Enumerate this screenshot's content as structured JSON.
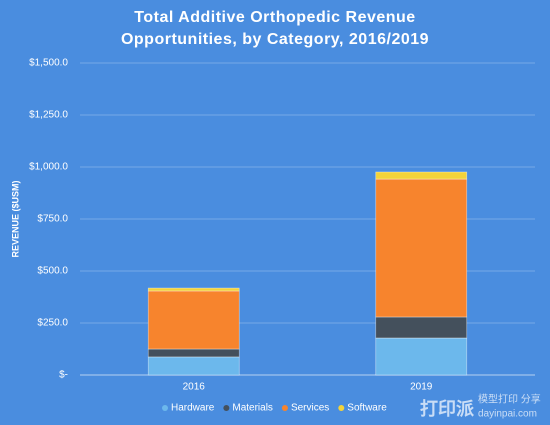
{
  "chart_data": {
    "type": "stacked-bar",
    "title": [
      "Total Additive Orthopedic Revenue",
      "Opportunities, by Category, 2016/2019"
    ],
    "y_label": "REVENUE ($USM)",
    "categories": [
      "2016",
      "2019"
    ],
    "series": [
      {
        "name": "Hardware",
        "color": "#6cb8ec",
        "values": [
          87,
          178
        ]
      },
      {
        "name": "Materials",
        "color": "#44505c",
        "values": [
          38,
          101
        ]
      },
      {
        "name": "Services",
        "color": "#f7842d",
        "values": [
          279,
          663
        ]
      },
      {
        "name": "Software",
        "color": "#f3d33a",
        "values": [
          14,
          34
        ]
      }
    ],
    "ylim": [
      0,
      1500
    ],
    "yticks": [
      {
        "value": 0,
        "label": "$-"
      },
      {
        "value": 250,
        "label": "$250.0"
      },
      {
        "value": 500,
        "label": "$500.0"
      },
      {
        "value": 750,
        "label": "$750.0"
      },
      {
        "value": 1000,
        "label": "$1,000.0"
      },
      {
        "value": 1250,
        "label": "$1,250.0"
      },
      {
        "value": 1500,
        "label": "$1,500.0"
      }
    ],
    "grid": true,
    "legend": "bottom",
    "watermark": [
      "打印派",
      "模型打印 分享",
      "dayinpai.com"
    ]
  }
}
